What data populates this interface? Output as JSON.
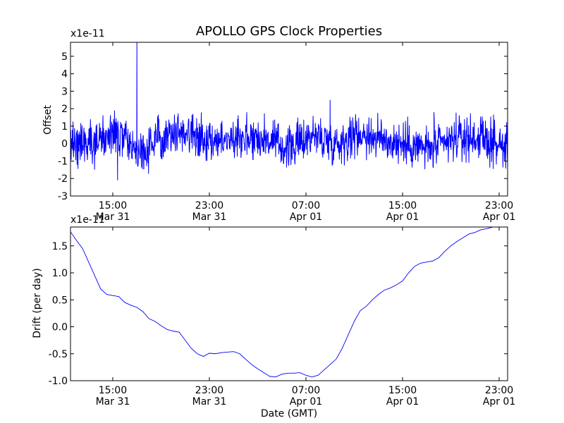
{
  "figure": {
    "title": "APOLLO GPS Clock Properties"
  },
  "colors": {
    "series": "#0000ff",
    "axis": "#000000",
    "background": "#ffffff"
  },
  "chart_data": [
    {
      "type": "line",
      "ylabel": "Offset",
      "xlabel": "",
      "scale_label": "x1e-11",
      "x_range": [
        "Mar 31 11:30",
        "Apr 01 23:40"
      ],
      "ylim": [
        -3,
        5.8
      ],
      "y_ticks": [
        "-3",
        "-2",
        "-1",
        "0",
        "1",
        "2",
        "3",
        "4",
        "5"
      ],
      "x_ticks": [
        {
          "time": "15:00",
          "date": "Mar 31"
        },
        {
          "time": "23:00",
          "date": "Mar 31"
        },
        {
          "time": "07:00",
          "date": "Apr 01"
        },
        {
          "time": "15:00",
          "date": "Apr 01"
        },
        {
          "time": "23:00",
          "date": "Apr 01"
        }
      ],
      "grid": false,
      "series": [
        {
          "noisy": true,
          "baseline_hours": [
            0,
            2,
            4,
            5,
            6,
            7,
            8,
            10,
            12,
            14,
            16,
            18,
            20,
            22,
            24,
            26,
            28,
            30,
            32,
            34,
            36.2
          ],
          "baseline_values": [
            0.0,
            0.2,
            0.5,
            -0.2,
            -0.5,
            0.1,
            0.7,
            0.6,
            0.1,
            0.4,
            0.3,
            -0.3,
            0.5,
            0.0,
            0.6,
            0.2,
            -0.1,
            -0.3,
            0.3,
            0.3,
            -0.3
          ],
          "spikes": [
            {
              "hour": 5.5,
              "value": 5.8
            },
            {
              "hour": 3.9,
              "value": -2.1
            },
            {
              "hour": 21.5,
              "value": 2.5
            },
            {
              "hour": 14.6,
              "value": 1.8
            },
            {
              "hour": 30.1,
              "value": 1.8
            }
          ]
        }
      ]
    },
    {
      "type": "line",
      "ylabel": "Drift (per day)",
      "xlabel": "Date (GMT)",
      "scale_label": "x1e-11",
      "x_range": [
        "Mar 31 11:30",
        "Apr 01 23:40"
      ],
      "ylim": [
        -1.0,
        1.85
      ],
      "y_ticks": [
        "-1.0",
        "-0.5",
        "0.0",
        "0.5",
        "1.0",
        "1.5"
      ],
      "x_ticks": [
        {
          "time": "15:00",
          "date": "Mar 31"
        },
        {
          "time": "23:00",
          "date": "Mar 31"
        },
        {
          "time": "07:00",
          "date": "Apr 01"
        },
        {
          "time": "15:00",
          "date": "Apr 01"
        },
        {
          "time": "23:00",
          "date": "Apr 01"
        }
      ],
      "grid": false,
      "series": [
        {
          "hours": [
            0,
            0.5,
            1,
            1.5,
            2,
            2.5,
            3,
            3.5,
            4,
            4.5,
            5,
            5.5,
            6,
            6.5,
            7,
            7.5,
            8,
            8.5,
            9,
            9.5,
            10,
            10.5,
            11,
            11.5,
            12,
            12.5,
            13,
            13.5,
            14,
            14.5,
            15,
            15.5,
            16,
            16.5,
            17,
            17.5,
            18,
            18.5,
            19,
            19.5,
            20,
            20.5,
            21,
            21.5,
            22,
            22.5,
            23,
            23.5,
            24,
            24.5,
            25,
            25.5,
            26,
            26.5,
            27,
            27.5,
            28,
            28.5,
            29,
            29.5,
            30,
            30.5,
            31,
            31.5,
            32,
            32.5,
            33,
            33.5,
            34,
            34.5,
            35,
            35.5,
            36,
            36.2
          ],
          "values": [
            1.76,
            1.6,
            1.45,
            1.2,
            0.95,
            0.7,
            0.6,
            0.58,
            0.56,
            0.45,
            0.4,
            0.36,
            0.28,
            0.15,
            0.1,
            0.02,
            -0.05,
            -0.08,
            -0.1,
            -0.25,
            -0.4,
            -0.5,
            -0.55,
            -0.49,
            -0.5,
            -0.48,
            -0.47,
            -0.46,
            -0.5,
            -0.6,
            -0.7,
            -0.78,
            -0.85,
            -0.92,
            -0.93,
            -0.88,
            -0.86,
            -0.86,
            -0.85,
            -0.9,
            -0.93,
            -0.9,
            -0.8,
            -0.7,
            -0.6,
            -0.4,
            -0.15,
            0.1,
            0.3,
            0.38,
            0.5,
            0.6,
            0.68,
            0.72,
            0.78,
            0.85,
            1.0,
            1.12,
            1.18,
            1.2,
            1.22,
            1.28,
            1.4,
            1.5,
            1.58,
            1.65,
            1.72,
            1.75,
            1.8,
            1.82,
            1.85,
            1.86,
            1.87,
            1.88
          ]
        }
      ]
    }
  ]
}
